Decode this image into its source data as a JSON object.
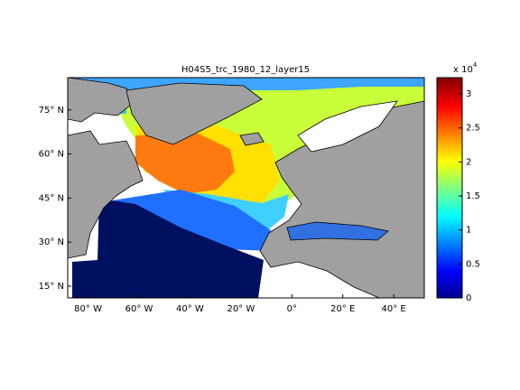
{
  "chart_data": {
    "type": "map",
    "title": "H04S5_trc_1980_12_layer15",
    "xlim": [
      -88,
      52
    ],
    "xticks": [
      {
        "value": -80,
        "label": "80° W"
      },
      {
        "value": -60,
        "label": "60° W"
      },
      {
        "value": -40,
        "label": "40° W"
      },
      {
        "value": -20,
        "label": "20° W"
      },
      {
        "value": 0,
        "label": "0°"
      },
      {
        "value": 20,
        "label": "20° E"
      },
      {
        "value": 40,
        "label": "40° E"
      }
    ],
    "ylim": [
      11,
      86
    ],
    "yticks": [
      {
        "value": 15,
        "label": "15° N"
      },
      {
        "value": 30,
        "label": "30° N"
      },
      {
        "value": 45,
        "label": "45° N"
      },
      {
        "value": 60,
        "label": "60° N"
      },
      {
        "value": 75,
        "label": "75° N"
      }
    ],
    "clim": [
      0,
      3.24
    ],
    "cticks": [
      0,
      0.5,
      1,
      1.5,
      2,
      2.5,
      3
    ],
    "colorbar_scale": {
      "base": "x 10",
      "exponent": "4"
    }
  }
}
